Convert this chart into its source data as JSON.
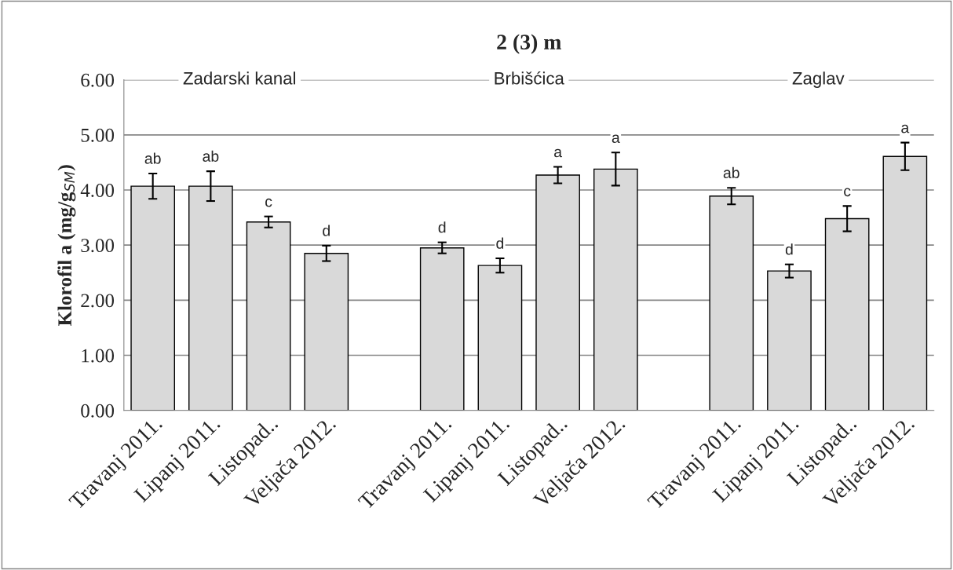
{
  "chart_data": {
    "type": "bar",
    "title": "2 (3) m",
    "ylabel": "Klorofil a (mg/g$_{SM}$)",
    "categories": [
      "Travanj 2011.",
      "Lipanj 2011.",
      "Listopad..",
      "Veljača 2012.",
      null,
      "Travanj 2011.",
      "Lipanj 2011.",
      "Listopad..",
      "Veljača 2012.",
      null,
      "Travanj 2011.",
      "Lipanj 2011.",
      "Listopad..",
      "Veljača 2012."
    ],
    "values": [
      4.07,
      4.07,
      3.42,
      2.85,
      null,
      2.95,
      2.63,
      4.27,
      4.38,
      null,
      3.89,
      2.53,
      3.48,
      4.61
    ],
    "errors": [
      0.23,
      0.27,
      0.1,
      0.14,
      null,
      0.1,
      0.13,
      0.15,
      0.3,
      null,
      0.15,
      0.12,
      0.23,
      0.25
    ],
    "value_labels": [
      "ab",
      "ab",
      "c",
      "d",
      null,
      "d",
      "d",
      "a",
      "a",
      null,
      "ab",
      "d",
      "c",
      "a"
    ],
    "color": "#d9d9d9",
    "annotations": [
      "Zadarski kanal",
      "Brbišćica",
      "Zaglav"
    ],
    "ylim": [
      0,
      6
    ],
    "yticks": [
      {
        "value": 0,
        "label": "0.00"
      },
      {
        "value": 1,
        "label": "1.00"
      },
      {
        "value": 2,
        "label": "2.00"
      },
      {
        "value": 3,
        "label": "3.00"
      },
      {
        "value": 4,
        "label": "4.00"
      },
      {
        "value": 5,
        "label": "5.00"
      },
      {
        "value": 6,
        "label": "6.00"
      }
    ],
    "grid": "y",
    "legend": false
  }
}
